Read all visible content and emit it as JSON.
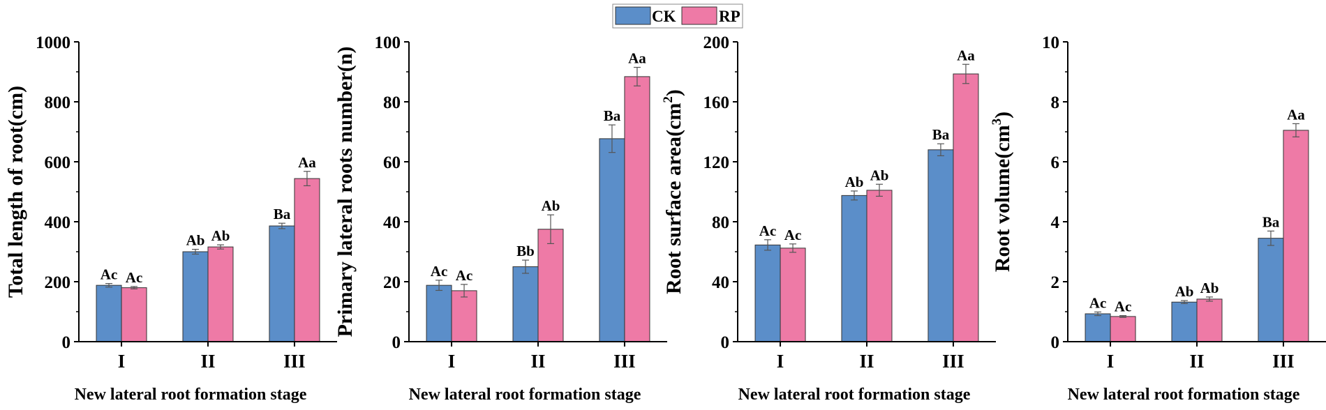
{
  "legend": {
    "items": [
      {
        "label": "CK",
        "color": "#5b8ec9"
      },
      {
        "label": "RP",
        "color": "#ee7aa6"
      }
    ]
  },
  "chart_data": [
    {
      "type": "bar",
      "title": "",
      "xlabel": "New lateral root formation stage",
      "ylabel": "Total  length  of  root(cm)",
      "ylabel_superscript": "",
      "ylabel_suffix": "",
      "ylim": [
        0,
        1000
      ],
      "yticks": [
        0,
        200,
        400,
        600,
        800,
        1000
      ],
      "categories": [
        "I",
        "II",
        "III"
      ],
      "series": [
        {
          "name": "CK",
          "values": [
            188,
            300,
            386
          ],
          "errors": [
            6,
            8,
            9
          ],
          "letters": [
            "Ac",
            "Ab",
            "Ba"
          ]
        },
        {
          "name": "RP",
          "values": [
            180,
            316,
            544
          ],
          "errors": [
            4,
            7,
            24
          ],
          "letters": [
            "Ac",
            "Ab",
            "Aa"
          ]
        }
      ]
    },
    {
      "type": "bar",
      "title": "",
      "xlabel": "New lateral root formation stage",
      "ylabel": "Primary lateral roots number(n)",
      "ylabel_superscript": "",
      "ylabel_suffix": "",
      "ylim": [
        0,
        100
      ],
      "yticks": [
        0,
        20,
        40,
        60,
        80,
        100
      ],
      "categories": [
        "I",
        "II",
        "III"
      ],
      "series": [
        {
          "name": "CK",
          "values": [
            18.8,
            25,
            67.7
          ],
          "errors": [
            1.7,
            2.2,
            4.6
          ],
          "letters": [
            "Ac",
            "Bb",
            "Ba"
          ]
        },
        {
          "name": "RP",
          "values": [
            17,
            37.5,
            88.4
          ],
          "errors": [
            2.1,
            4.8,
            3.1
          ],
          "letters": [
            "Ac",
            "Ab",
            "Aa"
          ]
        }
      ]
    },
    {
      "type": "bar",
      "title": "",
      "xlabel": "New lateral root formation stage",
      "ylabel": "Root  surface  area(cm",
      "ylabel_superscript": "2",
      "ylabel_suffix": ")",
      "ylim": [
        0,
        200
      ],
      "yticks": [
        0,
        40,
        80,
        120,
        160,
        200
      ],
      "categories": [
        "I",
        "II",
        "III"
      ],
      "series": [
        {
          "name": "CK",
          "values": [
            64.5,
            97.5,
            128
          ],
          "errors": [
            3.5,
            3,
            4
          ],
          "letters": [
            "Ac",
            "Ab",
            "Ba"
          ]
        },
        {
          "name": "RP",
          "values": [
            62.4,
            101,
            178.6
          ],
          "errors": [
            2.8,
            4,
            6.4
          ],
          "letters": [
            "Ac",
            "Ab",
            "Aa"
          ]
        }
      ]
    },
    {
      "type": "bar",
      "title": "",
      "xlabel": "New lateral root formation stage",
      "ylabel": "Root  volume(cm",
      "ylabel_superscript": "3",
      "ylabel_suffix": ")",
      "ylim": [
        0,
        10
      ],
      "yticks": [
        0,
        2,
        4,
        6,
        8,
        10
      ],
      "categories": [
        "I",
        "II",
        "III"
      ],
      "series": [
        {
          "name": "CK",
          "values": [
            0.93,
            1.32,
            3.45
          ],
          "errors": [
            0.06,
            0.05,
            0.24
          ],
          "letters": [
            "Ac",
            "Ab",
            "Ba"
          ]
        },
        {
          "name": "RP",
          "values": [
            0.84,
            1.42,
            7.05
          ],
          "errors": [
            0.03,
            0.07,
            0.22
          ],
          "letters": [
            "Ac",
            "Ab",
            "Aa"
          ]
        }
      ]
    }
  ]
}
